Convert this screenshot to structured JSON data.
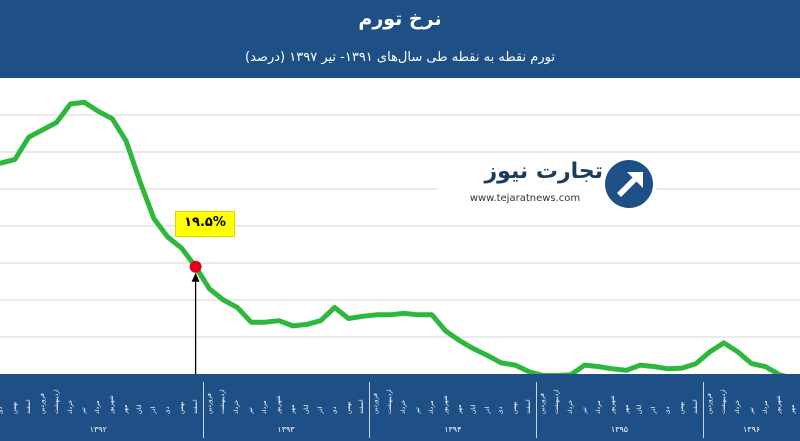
{
  "header": {
    "title": "نرخ تورم",
    "subtitle": "تورم نقطه به نقطه طی سال‌های ۱۳۹۱- تیر ۱۳۹۷ (درصد)"
  },
  "logo": {
    "name": "تجارت نیوز",
    "url": "www.tejaratnews.com"
  },
  "colors": {
    "header": "#1e4f86",
    "line": "#2db83d",
    "marker": "#e3001b",
    "callout": "#ffff00"
  },
  "chart_data": {
    "type": "line",
    "title": "نرخ تورم",
    "subtitle": "تورم نقطه به نقطه طی سال‌های ۱۳۹۱- تیر ۱۳۹۷ (درصد)",
    "xlabel": "",
    "ylabel": "",
    "grid": true,
    "ylim": [
      5,
      45
    ],
    "years": [
      {
        "label": "۱۳۹۲",
        "months": [
          "دی",
          "بهمن",
          "اسفند",
          "فروردین",
          "اردیبهشت",
          "خرداد",
          "تیر",
          "مرداد",
          "شهریور",
          "مهر",
          "آبان",
          "آذر",
          "دی",
          "بهمن",
          "اسفند"
        ]
      },
      {
        "label": "۱۳۹۳",
        "months": [
          "فروردین",
          "اردیبهشت",
          "خرداد",
          "تیر",
          "مرداد",
          "شهریور",
          "مهر",
          "آبان",
          "آذر",
          "دی",
          "بهمن",
          "اسفند"
        ]
      },
      {
        "label": "۱۳۹۴",
        "months": [
          "فروردین",
          "اردیبهشت",
          "خرداد",
          "تیر",
          "مرداد",
          "شهریور",
          "مهر",
          "آبان",
          "آذر",
          "دی",
          "بهمن",
          "اسفند"
        ]
      },
      {
        "label": "۱۳۹۵",
        "months": [
          "فروردین",
          "اردیبهشت",
          "خرداد",
          "تیر",
          "مرداد",
          "شهریور",
          "مهر",
          "آبان",
          "آذر",
          "دی",
          "بهمن",
          "اسفند"
        ]
      },
      {
        "label": "۱۳۹۶",
        "months": [
          "فروردین",
          "اردیبهشت",
          "خرداد",
          "تیر",
          "مرداد",
          "شهریور",
          "مهر"
        ]
      }
    ],
    "series": [
      {
        "values": [
          33.5,
          34,
          37,
          38,
          39,
          41.5,
          41.7,
          40.5,
          39.5,
          36.5,
          31,
          26,
          23.5,
          22,
          19.5,
          16.5,
          15,
          14,
          12,
          12,
          12.2,
          11.5,
          11.7,
          12.2,
          14,
          12.5,
          12.8,
          13,
          13,
          13.2,
          13,
          13,
          10.8,
          9.5,
          8.4,
          7.5,
          6.5,
          6.2,
          5.3,
          4.8,
          4.8,
          4.9,
          6.2,
          6,
          5.7,
          5.5,
          6.2,
          6,
          5.7,
          5.8,
          6.4,
          8,
          9.2,
          8,
          6.4,
          6,
          4.9,
          4.4,
          4.2
        ]
      }
    ],
    "annotation": {
      "label": "۱۹.۵%",
      "index": 14,
      "value": 19.5
    }
  }
}
